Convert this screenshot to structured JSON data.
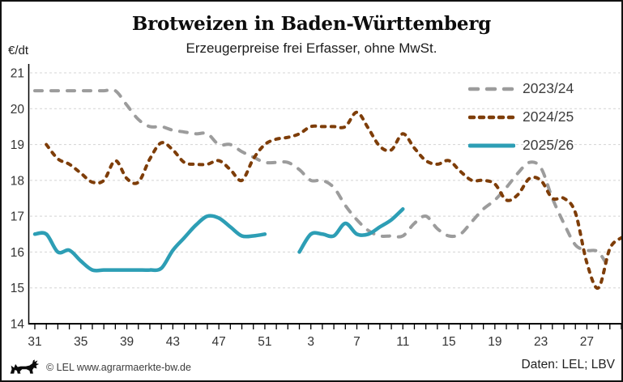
{
  "chart_data": {
    "type": "line",
    "title": "Brotweizen in Baden-Württemberg",
    "subtitle": "Erzeugerpreise frei Erfasser, ohne MwSt.",
    "ylabel": "€/dt",
    "ylim": [
      14,
      21
    ],
    "yticks": [
      14,
      15,
      16,
      17,
      18,
      19,
      20,
      21
    ],
    "grid": "horizontal-dashed",
    "legend_position": "inside-top-right",
    "x_axis_unit": "calendar week",
    "x_weeks": [
      31,
      32,
      33,
      34,
      35,
      36,
      37,
      38,
      39,
      40,
      41,
      42,
      43,
      44,
      45,
      46,
      47,
      48,
      49,
      50,
      51,
      52,
      1,
      2,
      3,
      4,
      5,
      6,
      7,
      8,
      9,
      10,
      11,
      12,
      13,
      14,
      15,
      16,
      17,
      18,
      19,
      20,
      21,
      22,
      23,
      24,
      25,
      26,
      27,
      28,
      29,
      30
    ],
    "xtick_labels": [
      31,
      35,
      39,
      43,
      47,
      51,
      3,
      7,
      11,
      15,
      19,
      23,
      27
    ],
    "series": [
      {
        "name": "2023/24",
        "color": "#9c9c9c",
        "line_style": "dashed-long",
        "values": [
          20.5,
          20.5,
          20.5,
          20.5,
          20.5,
          20.5,
          20.5,
          20.5,
          20.1,
          19.7,
          19.5,
          19.5,
          19.4,
          19.35,
          19.3,
          19.3,
          19.0,
          19.0,
          18.8,
          18.65,
          18.5,
          18.5,
          18.5,
          18.3,
          18.0,
          18.0,
          17.8,
          17.3,
          16.9,
          16.6,
          16.45,
          16.45,
          16.45,
          16.8,
          17.0,
          16.65,
          16.45,
          16.5,
          16.85,
          17.2,
          17.45,
          17.8,
          18.2,
          18.5,
          18.35,
          17.5,
          16.8,
          16.2,
          16.05,
          16.0,
          15.5,
          null
        ]
      },
      {
        "name": "2024/25",
        "color": "#7e3d08",
        "line_style": "dashed-short",
        "values": [
          null,
          19.0,
          18.6,
          18.45,
          18.2,
          17.95,
          18.0,
          18.55,
          18.05,
          17.95,
          18.6,
          19.05,
          18.85,
          18.5,
          18.45,
          18.45,
          18.55,
          18.3,
          18.0,
          18.6,
          19.0,
          19.15,
          19.2,
          19.3,
          19.5,
          19.5,
          19.5,
          19.5,
          19.9,
          19.45,
          18.95,
          18.85,
          19.3,
          18.9,
          18.55,
          18.45,
          18.55,
          18.25,
          18.0,
          18.0,
          17.9,
          17.45,
          17.6,
          18.05,
          18.0,
          17.5,
          17.5,
          17.1,
          15.7,
          15.0,
          16.1,
          16.4
        ]
      },
      {
        "name": "2025/26",
        "color": "#2d9eb5",
        "line_style": "solid",
        "values": [
          16.5,
          16.5,
          16.0,
          16.05,
          15.75,
          15.5,
          15.5,
          15.5,
          15.5,
          15.5,
          15.5,
          15.55,
          16.05,
          16.4,
          16.75,
          17.0,
          16.95,
          16.7,
          16.45,
          16.45,
          16.5,
          null,
          null,
          16.0,
          16.5,
          16.5,
          16.45,
          16.8,
          16.5,
          16.5,
          16.7,
          16.9,
          17.2,
          null,
          null,
          null,
          null,
          null,
          null,
          null,
          null,
          null,
          null,
          null,
          null,
          null,
          null,
          null,
          null,
          null,
          null,
          null
        ]
      }
    ]
  },
  "footer": {
    "copyright": "© LEL www.agrarmaerkte-bw.de",
    "source": "Daten: LEL; LBV",
    "logo": "baden-wuerttemberg-lion"
  }
}
